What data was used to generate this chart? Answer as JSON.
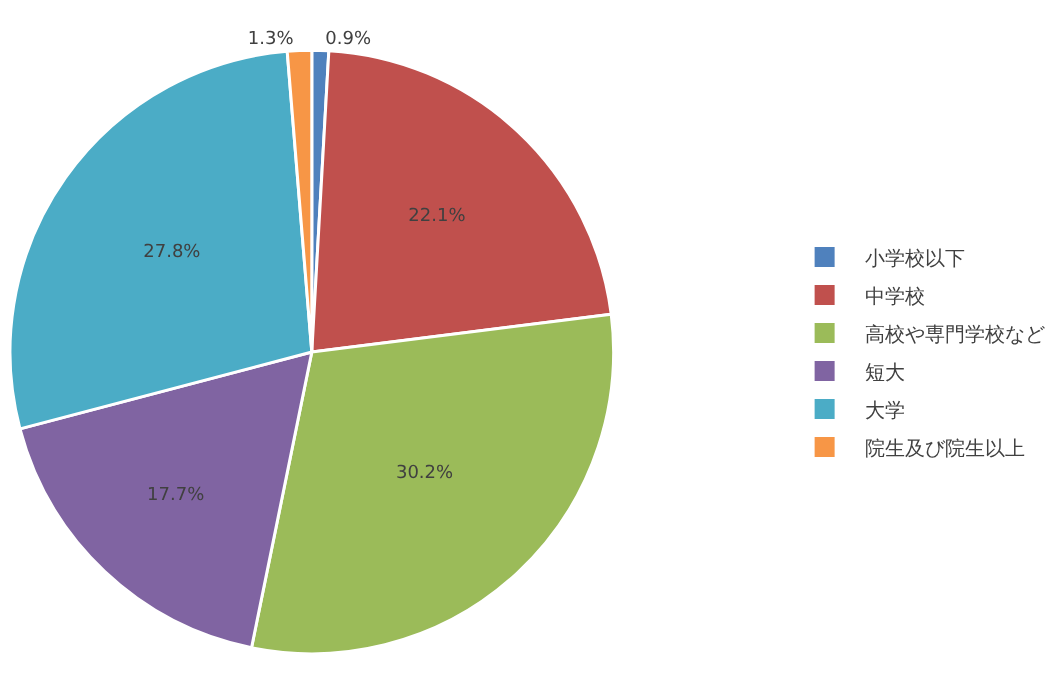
{
  "chart_data": {
    "type": "pie",
    "categories": [
      "小学校以下",
      "中学校",
      "高校や専門学校など",
      "短大",
      "大学",
      "院生及び院生以上"
    ],
    "values": [
      0.9,
      22.1,
      30.2,
      17.7,
      27.8,
      1.3
    ],
    "value_labels": [
      "0.9%",
      "22.1%",
      "30.2%",
      "17.7%",
      "27.8%",
      "1.3%"
    ],
    "colors": [
      "#4f81bd",
      "#c0504d",
      "#9bbb59",
      "#8064a2",
      "#4bacc6",
      "#f79646"
    ],
    "legend": "right"
  }
}
